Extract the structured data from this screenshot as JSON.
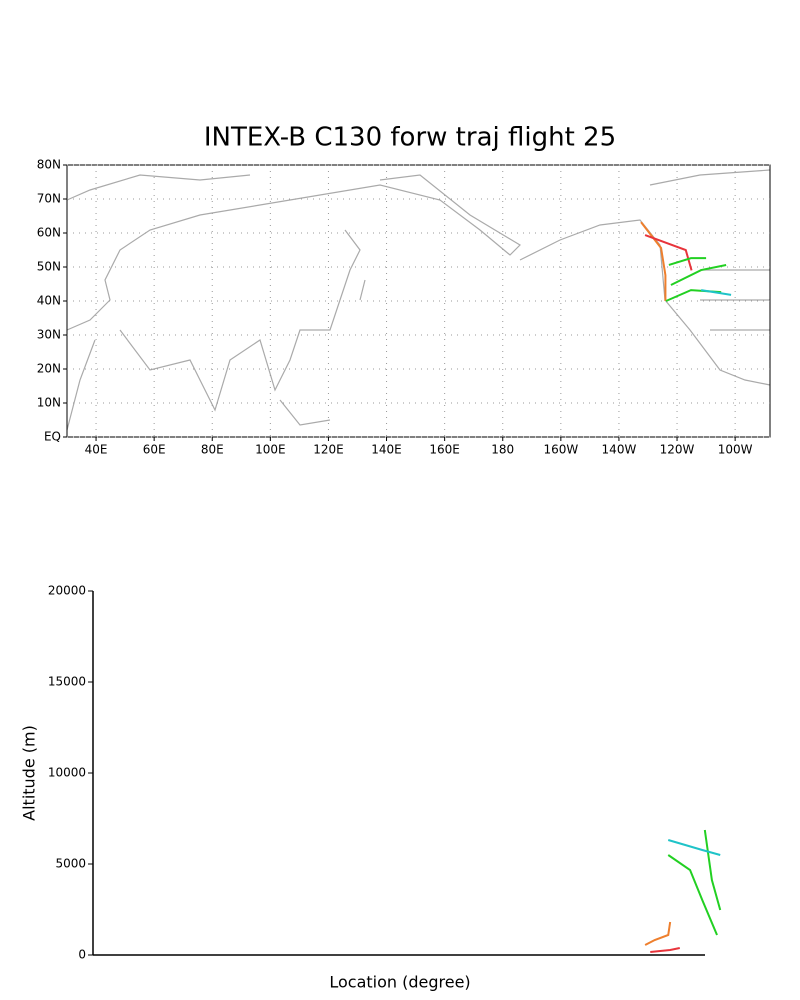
{
  "chart_data": [
    {
      "type": "map",
      "title": "INTEX-B C130 forw traj flight 25",
      "xlim": [
        30,
        272
      ],
      "ylim": [
        0,
        80
      ],
      "xticks": [
        {
          "value": 40,
          "label": "40E"
        },
        {
          "value": 60,
          "label": "60E"
        },
        {
          "value": 80,
          "label": "80E"
        },
        {
          "value": 100,
          "label": "100E"
        },
        {
          "value": 120,
          "label": "120E"
        },
        {
          "value": 140,
          "label": "140E"
        },
        {
          "value": 160,
          "label": "160E"
        },
        180,
        {
          "value": 200,
          "label": "160W"
        },
        {
          "value": 220,
          "label": "140W"
        },
        {
          "value": 240,
          "label": "120W"
        },
        {
          "value": 260,
          "label": "100W"
        }
      ],
      "yticks": [
        {
          "value": 0,
          "label": "EQ"
        },
        {
          "value": 10,
          "label": "10N"
        },
        {
          "value": 20,
          "label": "20N"
        },
        {
          "value": 30,
          "label": "30N"
        },
        {
          "value": 40,
          "label": "40N"
        },
        {
          "value": 50,
          "label": "50N"
        },
        {
          "value": 60,
          "label": "60N"
        },
        {
          "value": 70,
          "label": "70N"
        },
        {
          "value": 80,
          "label": "80N"
        }
      ],
      "grid": true,
      "series": [
        {
          "color": "#ee7f2d",
          "x": [
            227.6,
            234.5,
            236,
            236
          ],
          "y": [
            63.2,
            55.6,
            47.6,
            40
          ]
        },
        {
          "color": "#e8343b",
          "x": [
            229,
            243,
            245
          ],
          "y": [
            59.4,
            55,
            49
          ]
        },
        {
          "color": "#22d022",
          "x": [
            236.2,
            244.8,
            255.2,
            null,
            237.9,
            248.3,
            256.9,
            null,
            237.2,
            244.8,
            250
          ],
          "y": [
            40,
            43.2,
            42.6,
            null,
            44.7,
            49.1,
            50.6,
            null,
            50.6,
            52.6,
            52.6
          ]
        },
        {
          "color": "#1fc3c8",
          "x": [
            248.3,
            258.6
          ],
          "y": [
            43.2,
            41.8
          ]
        }
      ]
    },
    {
      "type": "line",
      "xlabel": "Location (degree)",
      "ylabel": "Altitude (m)",
      "xlim": [
        0,
        100
      ],
      "ylim": [
        0,
        20000
      ],
      "yticks": [
        0,
        5000,
        10000,
        15000,
        20000
      ],
      "grid": false,
      "series": [
        {
          "color": "#ee7f2d",
          "x": [
            86,
            87.5,
            89.6,
            89.9
          ],
          "y": [
            550,
            824,
            1099,
            1813
          ]
        },
        {
          "color": "#e8343b",
          "x": [
            86.8,
            89.9,
            91.4
          ],
          "y": [
            165,
            275,
            385
          ]
        },
        {
          "color": "#22d022",
          "x": [
            89.6,
            93,
            94.9,
            97.2,
            null,
            95.3,
            96.4,
            97.7
          ],
          "y": [
            5495,
            4670,
            3022,
            1099,
            null,
            6868,
            4121,
            2473
          ]
        },
        {
          "color": "#1fc3c8",
          "x": [
            89.6,
            94.9,
            97.7
          ],
          "y": [
            6319,
            5769,
            5495
          ]
        }
      ]
    }
  ]
}
